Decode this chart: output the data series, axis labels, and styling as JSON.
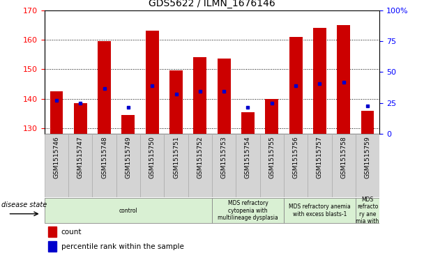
{
  "title": "GDS5622 / ILMN_1676146",
  "samples": [
    "GSM1515746",
    "GSM1515747",
    "GSM1515748",
    "GSM1515749",
    "GSM1515750",
    "GSM1515751",
    "GSM1515752",
    "GSM1515753",
    "GSM1515754",
    "GSM1515755",
    "GSM1515756",
    "GSM1515757",
    "GSM1515758",
    "GSM1515759"
  ],
  "counts": [
    142.5,
    138.5,
    159.5,
    134.5,
    163.0,
    149.5,
    154.0,
    153.5,
    135.5,
    140.0,
    161.0,
    164.0,
    165.0,
    136.0
  ],
  "percentiles": [
    139.5,
    138.5,
    143.5,
    137.0,
    144.5,
    141.5,
    142.5,
    142.5,
    137.0,
    138.5,
    144.5,
    145.0,
    145.5,
    137.5
  ],
  "ymin": 128,
  "ymax": 170,
  "y2min": 0,
  "y2max": 100,
  "yticks": [
    130,
    140,
    150,
    160,
    170
  ],
  "y2ticks": [
    0,
    25,
    50,
    75,
    100
  ],
  "bar_color": "#cc0000",
  "marker_color": "#0000cc",
  "tick_bg_color": "#d4d4d4",
  "tick_edge_color": "#aaaaaa",
  "disease_groups": [
    {
      "label": "control",
      "start": 0,
      "end": 7,
      "color": "#d9f0d3"
    },
    {
      "label": "MDS refractory\ncytopenia with\nmultilineage dysplasia",
      "start": 7,
      "end": 10,
      "color": "#d9f0d3"
    },
    {
      "label": "MDS refractory anemia\nwith excess blasts-1",
      "start": 10,
      "end": 13,
      "color": "#d9f0d3"
    },
    {
      "label": "MDS\nrefracto\nry ane\nmia with",
      "start": 13,
      "end": 14,
      "color": "#d9f0d3"
    }
  ],
  "disease_state_label": "disease state",
  "legend_count": "count",
  "legend_percentile": "percentile rank within the sample",
  "gridlines": [
    130,
    140,
    150,
    160
  ],
  "grid_style": ":",
  "grid_color": "#000000",
  "grid_lw": 0.7
}
